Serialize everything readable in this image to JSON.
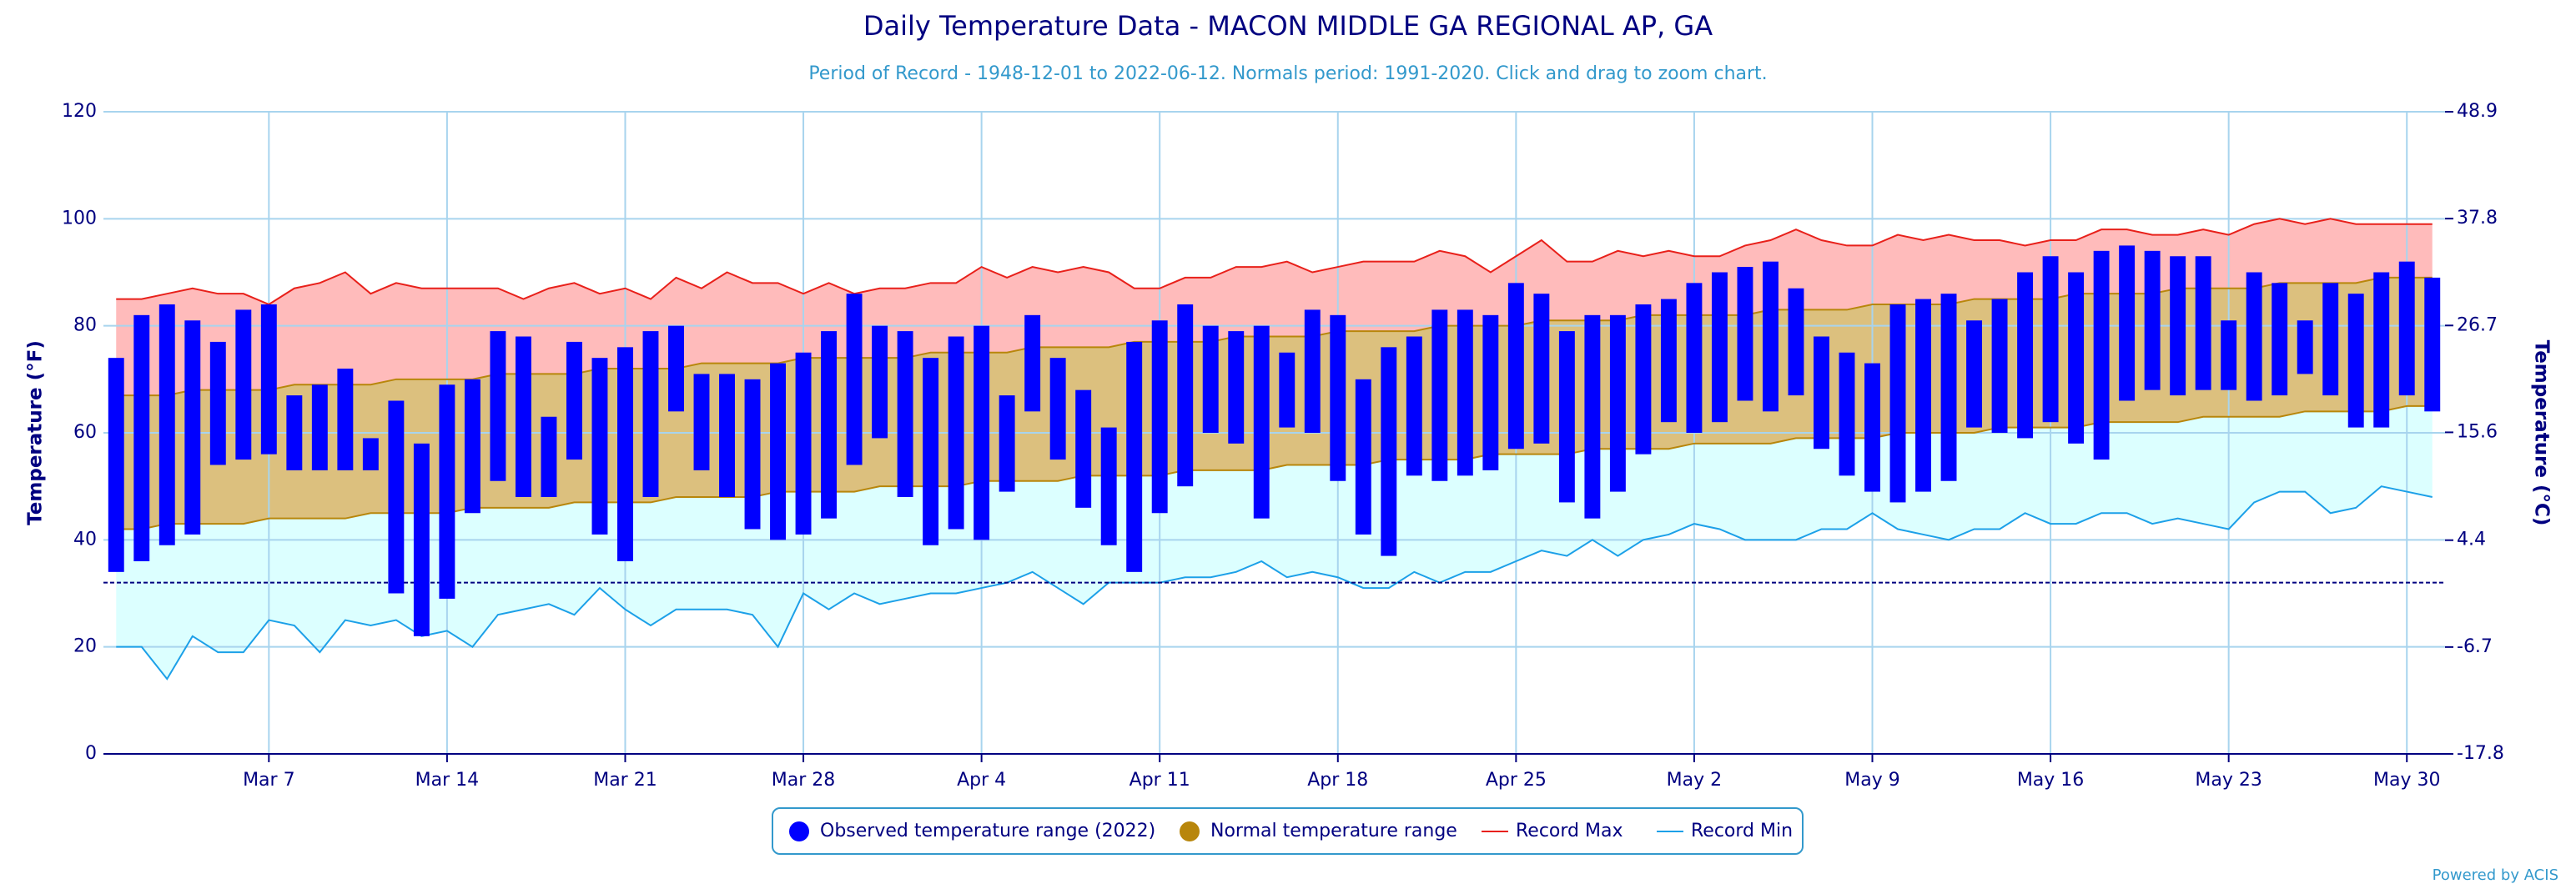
{
  "chart_data": {
    "type": "range",
    "title": "Daily Temperature Data - MACON MIDDLE GA REGIONAL AP, GA",
    "subtitle": "Period of Record - 1948-12-01 to 2022-06-12. Normals period: 1991-2020. Click and drag to zoom chart.",
    "y_label": "Temperature (°F)",
    "y2_label": "Temperature (°C)",
    "credit": "Powered by ACIS",
    "categories": [
      null,
      null,
      null,
      null,
      null,
      null,
      "Mar 7",
      null,
      null,
      null,
      null,
      null,
      null,
      "Mar 14",
      null,
      null,
      null,
      null,
      null,
      null,
      "Mar 21",
      null,
      null,
      null,
      null,
      null,
      null,
      "Mar 28",
      null,
      null,
      null,
      null,
      null,
      null,
      "Apr 4",
      null,
      null,
      null,
      null,
      null,
      null,
      "Apr 11",
      null,
      null,
      null,
      null,
      null,
      null,
      "Apr 18",
      null,
      null,
      null,
      null,
      null,
      null,
      "Apr 25",
      null,
      null,
      null,
      null,
      null,
      null,
      "May 2",
      null,
      null,
      null,
      null,
      null,
      null,
      "May 9",
      null,
      null,
      null,
      null,
      null,
      null,
      "May 16",
      null,
      null,
      null,
      null,
      null,
      null,
      "May 23",
      null,
      null,
      null,
      null,
      null,
      null,
      "May 30",
      null
    ],
    "ylim": [
      0,
      120
    ],
    "yticks": [
      0,
      20,
      40,
      60,
      80,
      100,
      120
    ],
    "y2lim": [
      -17.8,
      48.9
    ],
    "y2ticks": [
      -17.8,
      -6.7,
      4.4,
      15.6,
      26.7,
      37.8,
      48.9
    ],
    "grid": true,
    "freeze_line": 32,
    "freeze_color": "#000080",
    "series": [
      {
        "name": "Observed temperature range (2022)",
        "color": "#0000ff",
        "low": [
          34,
          36,
          39,
          41,
          54,
          55,
          56,
          53,
          53,
          53,
          53,
          30,
          22,
          29,
          45,
          51,
          48,
          48,
          55,
          41,
          36,
          48,
          64,
          53,
          48,
          42,
          40,
          41,
          44,
          54,
          59,
          48,
          39,
          42,
          40,
          49,
          64,
          55,
          46,
          39,
          34,
          45,
          50,
          60,
          58,
          44,
          61,
          60,
          51,
          41,
          37,
          52,
          51,
          52,
          53,
          57,
          58,
          47,
          44,
          49,
          56,
          62,
          60,
          62,
          66,
          64,
          67,
          57,
          52,
          49,
          47,
          49,
          51,
          61,
          60,
          59,
          62,
          58,
          55,
          66,
          68,
          67,
          68,
          68,
          66,
          67,
          71,
          67,
          61,
          61,
          67,
          64
        ],
        "high": [
          74,
          82,
          84,
          81,
          77,
          83,
          84,
          67,
          69,
          72,
          59,
          66,
          58,
          69,
          70,
          79,
          78,
          63,
          77,
          74,
          76,
          79,
          80,
          71,
          71,
          70,
          73,
          75,
          79,
          86,
          80,
          79,
          74,
          78,
          80,
          67,
          82,
          74,
          68,
          61,
          77,
          81,
          84,
          80,
          79,
          80,
          75,
          83,
          82,
          70,
          76,
          78,
          83,
          83,
          82,
          88,
          86,
          79,
          82,
          82,
          84,
          85,
          88,
          90,
          91,
          92,
          87,
          78,
          75,
          73,
          84,
          85,
          86,
          81,
          85,
          90,
          93,
          90,
          94,
          95,
          94,
          93,
          93,
          81,
          90,
          88,
          81,
          88,
          86,
          90,
          92,
          89
        ]
      },
      {
        "name": "Normal temperature range",
        "color": "#b8860b",
        "fill": "#dcc07e",
        "low": [
          42,
          42,
          43,
          43,
          43,
          43,
          44,
          44,
          44,
          44,
          45,
          45,
          45,
          45,
          46,
          46,
          46,
          46,
          47,
          47,
          47,
          47,
          48,
          48,
          48,
          48,
          49,
          49,
          49,
          49,
          50,
          50,
          50,
          50,
          51,
          51,
          51,
          51,
          52,
          52,
          52,
          52,
          53,
          53,
          53,
          53,
          54,
          54,
          54,
          54,
          55,
          55,
          55,
          55,
          56,
          56,
          56,
          56,
          57,
          57,
          57,
          57,
          58,
          58,
          58,
          58,
          59,
          59,
          59,
          59,
          60,
          60,
          60,
          60,
          61,
          61,
          61,
          61,
          62,
          62,
          62,
          62,
          63,
          63,
          63,
          63,
          64,
          64,
          64,
          64,
          65,
          65
        ],
        "high": [
          67,
          67,
          67,
          68,
          68,
          68,
          68,
          69,
          69,
          69,
          69,
          70,
          70,
          70,
          70,
          71,
          71,
          71,
          71,
          72,
          72,
          72,
          72,
          73,
          73,
          73,
          73,
          74,
          74,
          74,
          74,
          74,
          75,
          75,
          75,
          75,
          76,
          76,
          76,
          76,
          77,
          77,
          77,
          77,
          78,
          78,
          78,
          78,
          79,
          79,
          79,
          79,
          80,
          80,
          80,
          80,
          81,
          81,
          81,
          81,
          82,
          82,
          82,
          82,
          82,
          83,
          83,
          83,
          83,
          84,
          84,
          84,
          84,
          85,
          85,
          85,
          85,
          86,
          86,
          86,
          86,
          87,
          87,
          87,
          87,
          88,
          88,
          88,
          88,
          89,
          89,
          89
        ]
      },
      {
        "name": "Record Max",
        "color": "#e8201a",
        "fill": "#ffbbbb",
        "values": [
          85,
          85,
          86,
          87,
          86,
          86,
          84,
          87,
          88,
          90,
          86,
          88,
          87,
          87,
          87,
          87,
          85,
          87,
          88,
          86,
          87,
          85,
          89,
          87,
          90,
          88,
          88,
          86,
          88,
          86,
          87,
          87,
          88,
          88,
          91,
          89,
          91,
          90,
          91,
          90,
          87,
          87,
          89,
          89,
          91,
          91,
          92,
          90,
          91,
          92,
          92,
          92,
          94,
          93,
          90,
          93,
          96,
          92,
          92,
          94,
          93,
          94,
          93,
          93,
          95,
          96,
          98,
          96,
          95,
          95,
          97,
          96,
          97,
          96,
          96,
          95,
          96,
          96,
          98,
          98,
          97,
          97,
          98,
          97,
          99,
          100,
          99,
          100,
          99,
          99,
          99,
          99
        ]
      },
      {
        "name": "Record Min",
        "color": "#1ca0e8",
        "fill": "#dcffff",
        "values": [
          20,
          20,
          14,
          22,
          19,
          19,
          25,
          24,
          19,
          25,
          24,
          25,
          22,
          23,
          20,
          26,
          27,
          28,
          26,
          31,
          27,
          24,
          27,
          27,
          27,
          26,
          20,
          30,
          27,
          30,
          28,
          29,
          30,
          30,
          31,
          32,
          34,
          31,
          28,
          32,
          32,
          32,
          33,
          33,
          34,
          36,
          33,
          34,
          33,
          31,
          31,
          34,
          32,
          34,
          34,
          36,
          38,
          37,
          40,
          37,
          40,
          41,
          43,
          42,
          40,
          40,
          40,
          42,
          42,
          45,
          42,
          41,
          40,
          42,
          42,
          45,
          43,
          43,
          45,
          45,
          43,
          44,
          43,
          42,
          47,
          49,
          49,
          45,
          46,
          50,
          49,
          48
        ]
      }
    ]
  }
}
